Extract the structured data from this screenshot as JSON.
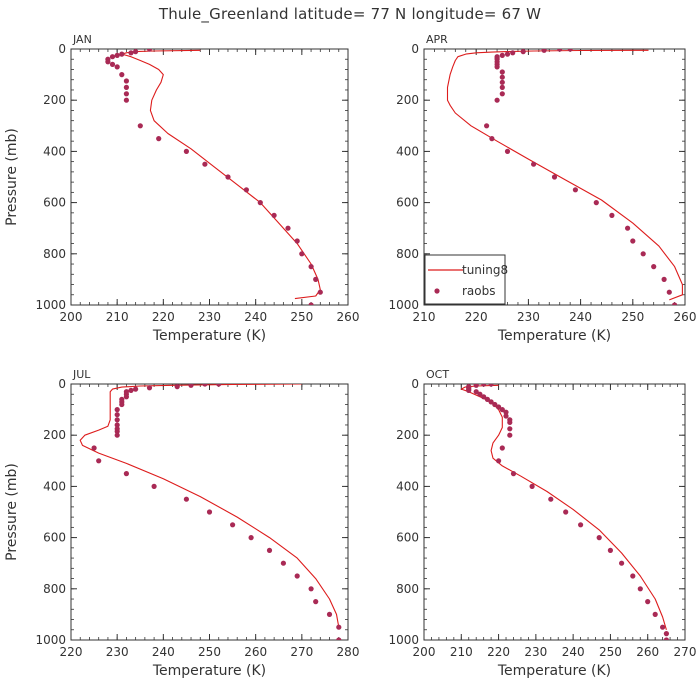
{
  "figure": {
    "title": "Thule_Greenland  latitude= 77 N longitude= 67 W",
    "colors": {
      "model": "#dd1c1c",
      "obs": "#a92a55",
      "axis": "#333333"
    },
    "legend": {
      "placement": "bottom-left of APR panel",
      "entries": [
        "tuning8",
        "raobs"
      ]
    }
  },
  "chart_data": [
    {
      "type": "line",
      "title": "JAN",
      "xlabel": "Temperature (K)",
      "ylabel": "Pressure (mb)",
      "xlim": [
        200,
        260
      ],
      "xticks": [
        200,
        210,
        220,
        230,
        240,
        250,
        260
      ],
      "ylim": [
        0,
        1000
      ],
      "yticks": [
        0,
        200,
        400,
        600,
        800,
        1000
      ],
      "y_inverted": true,
      "grid": false,
      "series": [
        {
          "name": "tuning8",
          "style": "line",
          "x": [
            228,
            218,
            214,
            212,
            211,
            213,
            215,
            217,
            219,
            220,
            219.5,
            218.5,
            217.5,
            217.2,
            218,
            221,
            226,
            231,
            236,
            241,
            245,
            249,
            252,
            253.5,
            254,
            253,
            248.5
          ],
          "y": [
            5,
            8,
            10,
            15,
            20,
            30,
            45,
            60,
            80,
            100,
            130,
            160,
            200,
            240,
            280,
            330,
            390,
            460,
            530,
            600,
            680,
            760,
            840,
            900,
            940,
            965,
            975
          ]
        },
        {
          "name": "raobs",
          "style": "markers",
          "x": [
            217,
            214,
            213,
            211,
            210,
            209,
            208,
            208,
            209,
            210,
            211,
            212,
            212,
            212,
            212,
            215,
            219,
            225,
            229,
            234,
            238,
            241,
            244,
            247,
            249,
            250,
            252,
            253,
            254,
            252
          ],
          "y": [
            0,
            10,
            15,
            20,
            25,
            30,
            40,
            50,
            60,
            70,
            100,
            125,
            150,
            175,
            200,
            300,
            350,
            400,
            450,
            500,
            550,
            600,
            650,
            700,
            750,
            800,
            850,
            900,
            950,
            1000
          ]
        }
      ]
    },
    {
      "type": "line",
      "title": "APR",
      "xlabel": "Temperature (K)",
      "ylabel": "Pressure (mb)",
      "xlim": [
        210,
        260
      ],
      "xticks": [
        210,
        220,
        230,
        240,
        250,
        260
      ],
      "ylim": [
        0,
        1000
      ],
      "yticks": [
        0,
        200,
        400,
        600,
        800,
        1000
      ],
      "y_inverted": true,
      "grid": false,
      "series": [
        {
          "name": "tuning8",
          "style": "line",
          "x": [
            253,
            240,
            231,
            226,
            223,
            220,
            218,
            216.5,
            216,
            215.5,
            215,
            214.5,
            214.5,
            215,
            216,
            219,
            224,
            230,
            237,
            244,
            250,
            255,
            258,
            259.5,
            259.5,
            257
          ],
          "y": [
            5,
            6,
            8,
            10,
            12,
            15,
            20,
            30,
            45,
            70,
            100,
            150,
            200,
            220,
            250,
            300,
            360,
            430,
            510,
            590,
            680,
            770,
            850,
            920,
            960,
            980
          ]
        },
        {
          "name": "raobs",
          "style": "markers",
          "x": [
            238,
            236,
            233,
            229,
            227,
            226,
            225,
            224,
            224,
            224,
            224,
            224,
            224,
            225,
            225,
            225,
            225,
            225,
            224,
            222,
            223,
            226,
            231,
            235,
            239,
            243,
            246,
            249,
            250,
            252,
            254,
            256,
            257,
            258
          ],
          "y": [
            0,
            0,
            5,
            10,
            15,
            20,
            25,
            30,
            35,
            40,
            50,
            60,
            70,
            90,
            110,
            130,
            150,
            175,
            200,
            300,
            350,
            400,
            450,
            500,
            550,
            600,
            650,
            700,
            750,
            800,
            850,
            900,
            950,
            1000
          ]
        }
      ]
    },
    {
      "type": "line",
      "title": "JUL",
      "xlabel": "Temperature (K)",
      "ylabel": "Pressure (mb)",
      "xlim": [
        220,
        280
      ],
      "xticks": [
        220,
        230,
        240,
        250,
        260,
        270,
        280
      ],
      "ylim": [
        0,
        1000
      ],
      "yticks": [
        0,
        200,
        400,
        600,
        800,
        1000
      ],
      "y_inverted": true,
      "grid": false,
      "series": [
        {
          "name": "tuning8",
          "style": "line",
          "x": [
            270,
            255,
            242,
            235,
            231,
            229,
            228.5,
            228.5,
            228.5,
            228.5,
            228,
            226,
            223,
            222,
            222.5,
            226,
            232,
            240,
            248,
            256,
            263,
            269,
            273,
            276,
            277.5,
            278
          ],
          "y": [
            0,
            2,
            5,
            8,
            12,
            20,
            30,
            60,
            100,
            140,
            165,
            180,
            200,
            220,
            240,
            270,
            310,
            370,
            440,
            520,
            600,
            680,
            760,
            840,
            900,
            950
          ]
        },
        {
          "name": "raobs",
          "style": "markers",
          "x": [
            252,
            249,
            246,
            243,
            237,
            234,
            233,
            232,
            232,
            232,
            231,
            231,
            231,
            230,
            230,
            230,
            230,
            230,
            230,
            230,
            225,
            226,
            232,
            238,
            245,
            250,
            255,
            259,
            263,
            266,
            269,
            272,
            273,
            276,
            278,
            278
          ],
          "y": [
            0,
            0,
            5,
            10,
            15,
            20,
            25,
            30,
            40,
            50,
            60,
            70,
            80,
            100,
            120,
            140,
            160,
            175,
            185,
            200,
            250,
            300,
            350,
            400,
            450,
            500,
            550,
            600,
            650,
            700,
            750,
            800,
            850,
            900,
            950,
            1000
          ]
        }
      ]
    },
    {
      "type": "line",
      "title": "OCT",
      "xlabel": "Temperature (K)",
      "ylabel": "Pressure (mb)",
      "xlim": [
        200,
        270
      ],
      "xticks": [
        200,
        210,
        220,
        230,
        240,
        250,
        260,
        270
      ],
      "ylim": [
        0,
        1000
      ],
      "yticks": [
        0,
        200,
        400,
        600,
        800,
        1000
      ],
      "y_inverted": true,
      "grid": false,
      "series": [
        {
          "name": "tuning8",
          "style": "line",
          "x": [
            220,
            214,
            211,
            210,
            212,
            215,
            218,
            220,
            221,
            221,
            220,
            218.5,
            218,
            218.5,
            221,
            226,
            233,
            240,
            247,
            253,
            258,
            262,
            264,
            265
          ],
          "y": [
            5,
            8,
            12,
            20,
            30,
            50,
            70,
            100,
            130,
            170,
            200,
            230,
            260,
            290,
            320,
            360,
            420,
            490,
            570,
            660,
            750,
            840,
            910,
            960
          ]
        },
        {
          "name": "raobs",
          "style": "markers",
          "x": [
            218,
            216,
            214,
            212,
            212,
            212,
            212,
            214,
            215,
            216,
            217,
            218,
            219,
            220,
            221,
            222,
            222,
            223,
            223,
            223,
            223,
            221,
            220,
            224,
            229,
            234,
            238,
            242,
            247,
            250,
            253,
            256,
            258,
            260,
            262,
            264,
            265,
            265
          ],
          "y": [
            0,
            0,
            5,
            10,
            15,
            20,
            25,
            30,
            40,
            50,
            60,
            70,
            80,
            90,
            100,
            110,
            125,
            140,
            150,
            175,
            200,
            250,
            300,
            350,
            400,
            450,
            500,
            550,
            600,
            650,
            700,
            750,
            800,
            850,
            900,
            950,
            975,
            1000
          ]
        }
      ]
    }
  ]
}
